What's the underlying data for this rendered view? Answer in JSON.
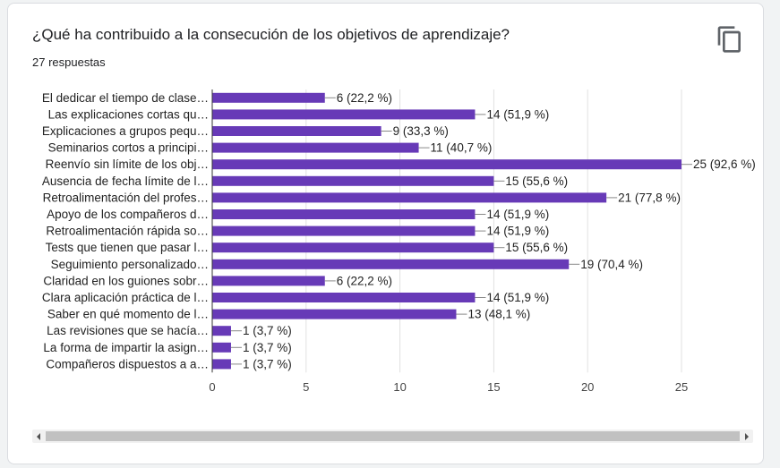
{
  "question": {
    "title": "¿Qué ha contribuido a la consecución de los objetivos de aprendizaje?",
    "responses": "27 respuestas"
  },
  "icons": {
    "copy": "copy-icon",
    "scroll_left": "arrow-left-icon",
    "scroll_right": "arrow-right-icon"
  },
  "colors": {
    "bar": "#673ab7"
  },
  "chart_data": {
    "type": "bar",
    "orientation": "horizontal",
    "categories": [
      "El dedicar el tiempo de clase…",
      "Las explicaciones cortas qu…",
      "Explicaciones a grupos pequ…",
      "Seminarios cortos a principi…",
      "Reenvío sin límite de los obj…",
      "Ausencia de fecha límite de l…",
      "Retroalimentación del profes…",
      "Apoyo de los compañeros d…",
      "Retroalimentación rápida so…",
      "Tests que tienen que pasar l…",
      "Seguimiento personalizado…",
      "Claridad en los guiones sobr…",
      "Clara aplicación práctica de l…",
      "Saber en qué momento de l…",
      "Las revisiones que se hacía…",
      "La forma de impartir la asign…",
      "Compañeros dispuestos a a…"
    ],
    "values": [
      6,
      14,
      9,
      11,
      25,
      15,
      21,
      14,
      14,
      15,
      19,
      6,
      14,
      13,
      1,
      1,
      1
    ],
    "data_labels": [
      "6 (22,2 %)",
      "14 (51,9 %)",
      "9 (33,3 %)",
      "11 (40,7 %)",
      "25 (92,6 %)",
      "15 (55,6 %)",
      "21 (77,8 %)",
      "14 (51,9 %)",
      "14 (51,9 %)",
      "15 (55,6 %)",
      "19 (70,4 %)",
      "6 (22,2 %)",
      "14 (51,9 %)",
      "13 (48,1 %)",
      "1 (3,7 %)",
      "1 (3,7 %)",
      "1 (3,7 %)"
    ],
    "xlim": [
      0,
      25
    ],
    "xticks": [
      "0",
      "5",
      "10",
      "15",
      "20",
      "25"
    ],
    "grid": true
  }
}
